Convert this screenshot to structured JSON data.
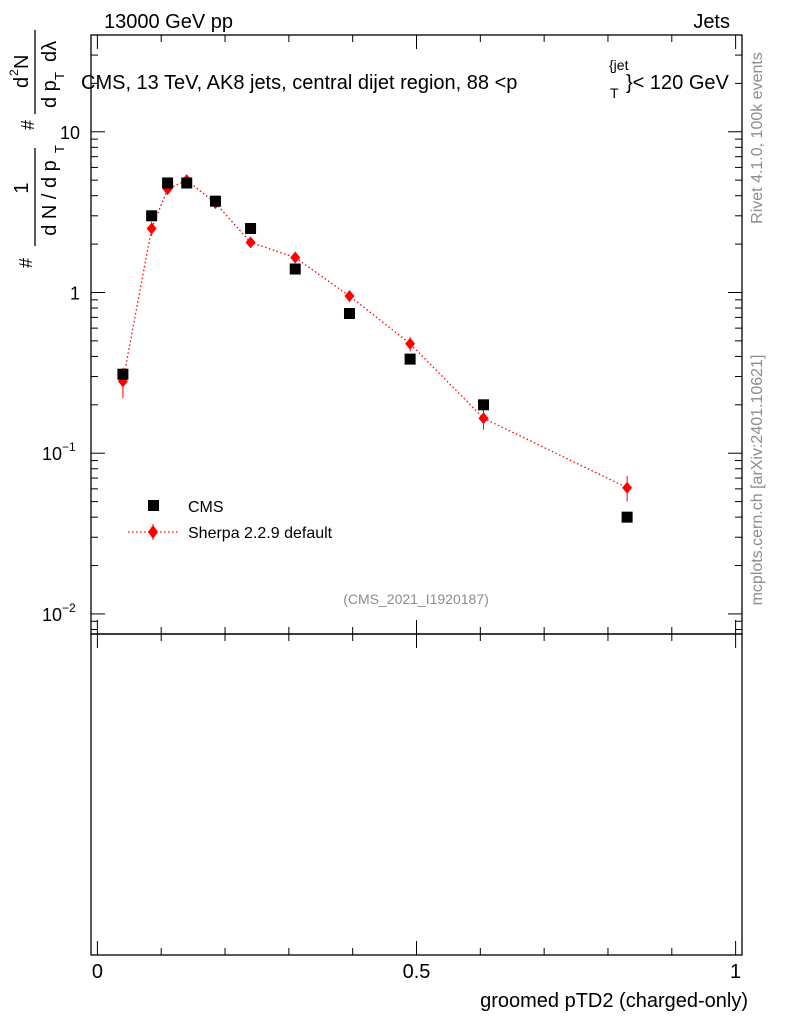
{
  "header": {
    "left": "13000 GeV pp",
    "right": "Jets"
  },
  "side_labels": {
    "rivet": "Rivet 4.1.0,  100k events",
    "mcplots": "mcplots.cern.ch [arXiv:2401.10621]"
  },
  "chart_data": {
    "type": "scatter",
    "title": "CMS, 13 TeV, AK8 jets, central dijet region, 88 <p_T^{jet}< 120 GeV",
    "title_parts": {
      "main": "CMS, 13 TeV, AK8 jets, central dijet region, 88 <p",
      "sub": "T",
      "sup": "{jet",
      "rest": "}< 120 GeV"
    },
    "ylabel": "1/(dN/dp_T) d²N/(dp_T dλ)",
    "ylabel_parts": {
      "hash": "#",
      "one": "1",
      "den": "d N / d p",
      "numer": "d",
      "numer_sup": "2",
      "numer_n": "N",
      "hash2": "#",
      "den2": "d p",
      "dlambda": "dλ",
      "sub_T": "T"
    },
    "xlabel": "groomed pTD2 (charged-only)",
    "watermark": "(CMS_2021_I1920187)",
    "xlim": [
      -0.01,
      1.01
    ],
    "ylim": [
      0.0075,
      40
    ],
    "yscale": "log",
    "x_ticks": [
      {
        "value": 0,
        "label": "0"
      },
      {
        "value": 0.5,
        "label": "0.5"
      },
      {
        "value": 1,
        "label": "1"
      }
    ],
    "y_ticks": [
      {
        "value": 0.01,
        "base": "10",
        "exp": "−2"
      },
      {
        "value": 0.1,
        "base": "10",
        "exp": "−1"
      },
      {
        "value": 1,
        "base": "1",
        "exp": ""
      },
      {
        "value": 10,
        "base": "10",
        "exp": ""
      }
    ],
    "legend_position": "middle-left",
    "series": [
      {
        "name": "CMS",
        "marker": "square",
        "color": "#000000",
        "x": [
          0.04,
          0.085,
          0.11,
          0.14,
          0.185,
          0.24,
          0.31,
          0.395,
          0.49,
          0.605,
          0.83
        ],
        "y": [
          0.31,
          3.0,
          4.8,
          4.8,
          3.7,
          2.5,
          1.4,
          0.74,
          0.385,
          0.2,
          0.04
        ]
      },
      {
        "name": "Sherpa 2.2.9 default",
        "marker": "diamond",
        "line": "dotted",
        "color": "#ff0000",
        "x": [
          0.04,
          0.085,
          0.11,
          0.14,
          0.185,
          0.24,
          0.31,
          0.395,
          0.49,
          0.605,
          0.83
        ],
        "y": [
          0.28,
          2.5,
          4.4,
          5.0,
          3.6,
          2.05,
          1.65,
          0.95,
          0.48,
          0.165,
          0.061
        ],
        "yerr_lo": [
          0.06,
          0.25,
          0.35,
          0.3,
          0.2,
          0.15,
          0.12,
          0.08,
          0.05,
          0.025,
          0.011
        ],
        "yerr_hi": [
          0.06,
          0.25,
          0.35,
          0.3,
          0.2,
          0.15,
          0.12,
          0.08,
          0.05,
          0.025,
          0.011
        ]
      }
    ]
  }
}
